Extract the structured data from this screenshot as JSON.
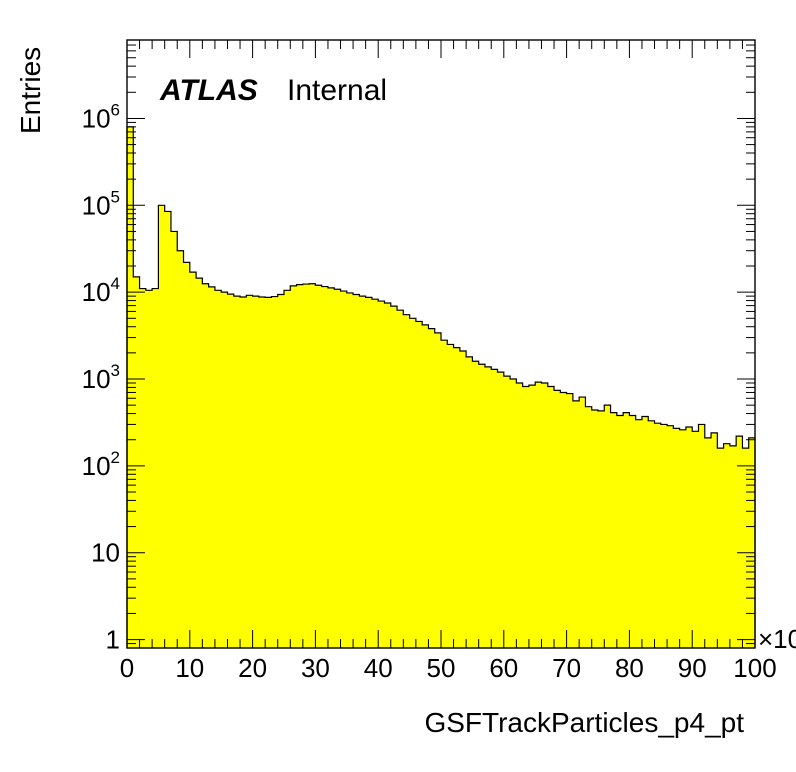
{
  "chart_data": {
    "type": "bar",
    "style": "histogram",
    "xlabel": "GSFTrackParticles_p4_pt",
    "ylabel": "Entries",
    "x_multiplier_label": "×10",
    "atlas_label": "ATLAS",
    "atlas_status": "Internal",
    "log_y": true,
    "xlim": [
      0,
      100
    ],
    "ylim": [
      0.8,
      8000000
    ],
    "x_ticks": [
      {
        "value": 0,
        "label": "0"
      },
      {
        "value": 10,
        "label": "10"
      },
      {
        "value": 20,
        "label": "20"
      },
      {
        "value": 30,
        "label": "30"
      },
      {
        "value": 40,
        "label": "40"
      },
      {
        "value": 50,
        "label": "50"
      },
      {
        "value": 60,
        "label": "60"
      },
      {
        "value": 70,
        "label": "70"
      },
      {
        "value": 80,
        "label": "80"
      },
      {
        "value": 90,
        "label": "90"
      },
      {
        "value": 100,
        "label": "100"
      }
    ],
    "y_ticks": [
      {
        "value": 1,
        "base": "1",
        "exp": ""
      },
      {
        "value": 10,
        "base": "10",
        "exp": ""
      },
      {
        "value": 100,
        "base": "10",
        "exp": "2"
      },
      {
        "value": 1000,
        "base": "10",
        "exp": "3"
      },
      {
        "value": 10000,
        "base": "10",
        "exp": "4"
      },
      {
        "value": 100000,
        "base": "10",
        "exp": "5"
      },
      {
        "value": 1000000,
        "base": "10",
        "exp": "6"
      }
    ],
    "bin_width": 1,
    "values": [
      800000,
      15000,
      11000,
      10500,
      11000,
      100000,
      85000,
      50000,
      30000,
      22000,
      17000,
      14500,
      12500,
      11500,
      10500,
      10000,
      9500,
      9000,
      8800,
      9200,
      9000,
      8800,
      8700,
      8900,
      9400,
      10500,
      11800,
      12200,
      12400,
      12500,
      12000,
      11600,
      11200,
      10800,
      10300,
      9800,
      9400,
      9000,
      8700,
      8300,
      7900,
      7500,
      6900,
      6200,
      5500,
      5000,
      4600,
      4200,
      3800,
      3400,
      2800,
      2500,
      2300,
      2100,
      1800,
      1600,
      1480,
      1380,
      1290,
      1200,
      1080,
      1000,
      900,
      820,
      850,
      920,
      900,
      820,
      740,
      700,
      680,
      560,
      620,
      480,
      440,
      430,
      500,
      410,
      380,
      410,
      380,
      340,
      370,
      330,
      310,
      300,
      290,
      270,
      260,
      280,
      250,
      300,
      210,
      240,
      160,
      180,
      170,
      220,
      160,
      210
    ]
  }
}
